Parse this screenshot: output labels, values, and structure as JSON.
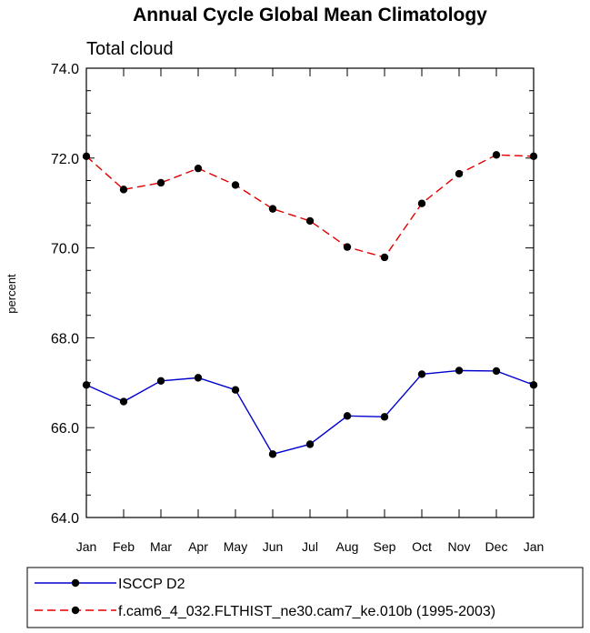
{
  "chart_data": {
    "type": "line",
    "title": "Annual Cycle Global Mean Climatology",
    "subtitle": "Total cloud",
    "xlabel": "",
    "ylabel": "percent",
    "categories": [
      "Jan",
      "Feb",
      "Mar",
      "Apr",
      "May",
      "Jun",
      "Jul",
      "Aug",
      "Sep",
      "Oct",
      "Nov",
      "Dec",
      "Jan"
    ],
    "ylim": [
      64.0,
      74.0
    ],
    "yticks": [
      "64.0",
      "66.0",
      "68.0",
      "70.0",
      "72.0",
      "74.0"
    ],
    "grid": false,
    "legend_position": "bottom",
    "series": [
      {
        "name": "ISCCP D2",
        "color": "#0000cc",
        "line_style": "solid",
        "marker": "filled-circle",
        "values": [
          66.95,
          66.58,
          67.04,
          67.11,
          66.84,
          65.41,
          65.63,
          66.26,
          66.24,
          67.19,
          67.27,
          67.26,
          66.95
        ]
      },
      {
        "name": "f.cam6_4_032.FLTHIST_ne30.cam7_ke.010b (1995-2003)",
        "color": "#e00000",
        "line_style": "dashed",
        "marker": "filled-circle",
        "values": [
          72.04,
          71.3,
          71.45,
          71.77,
          71.4,
          70.87,
          70.6,
          70.02,
          69.79,
          70.99,
          71.65,
          72.07,
          72.04
        ]
      }
    ]
  }
}
